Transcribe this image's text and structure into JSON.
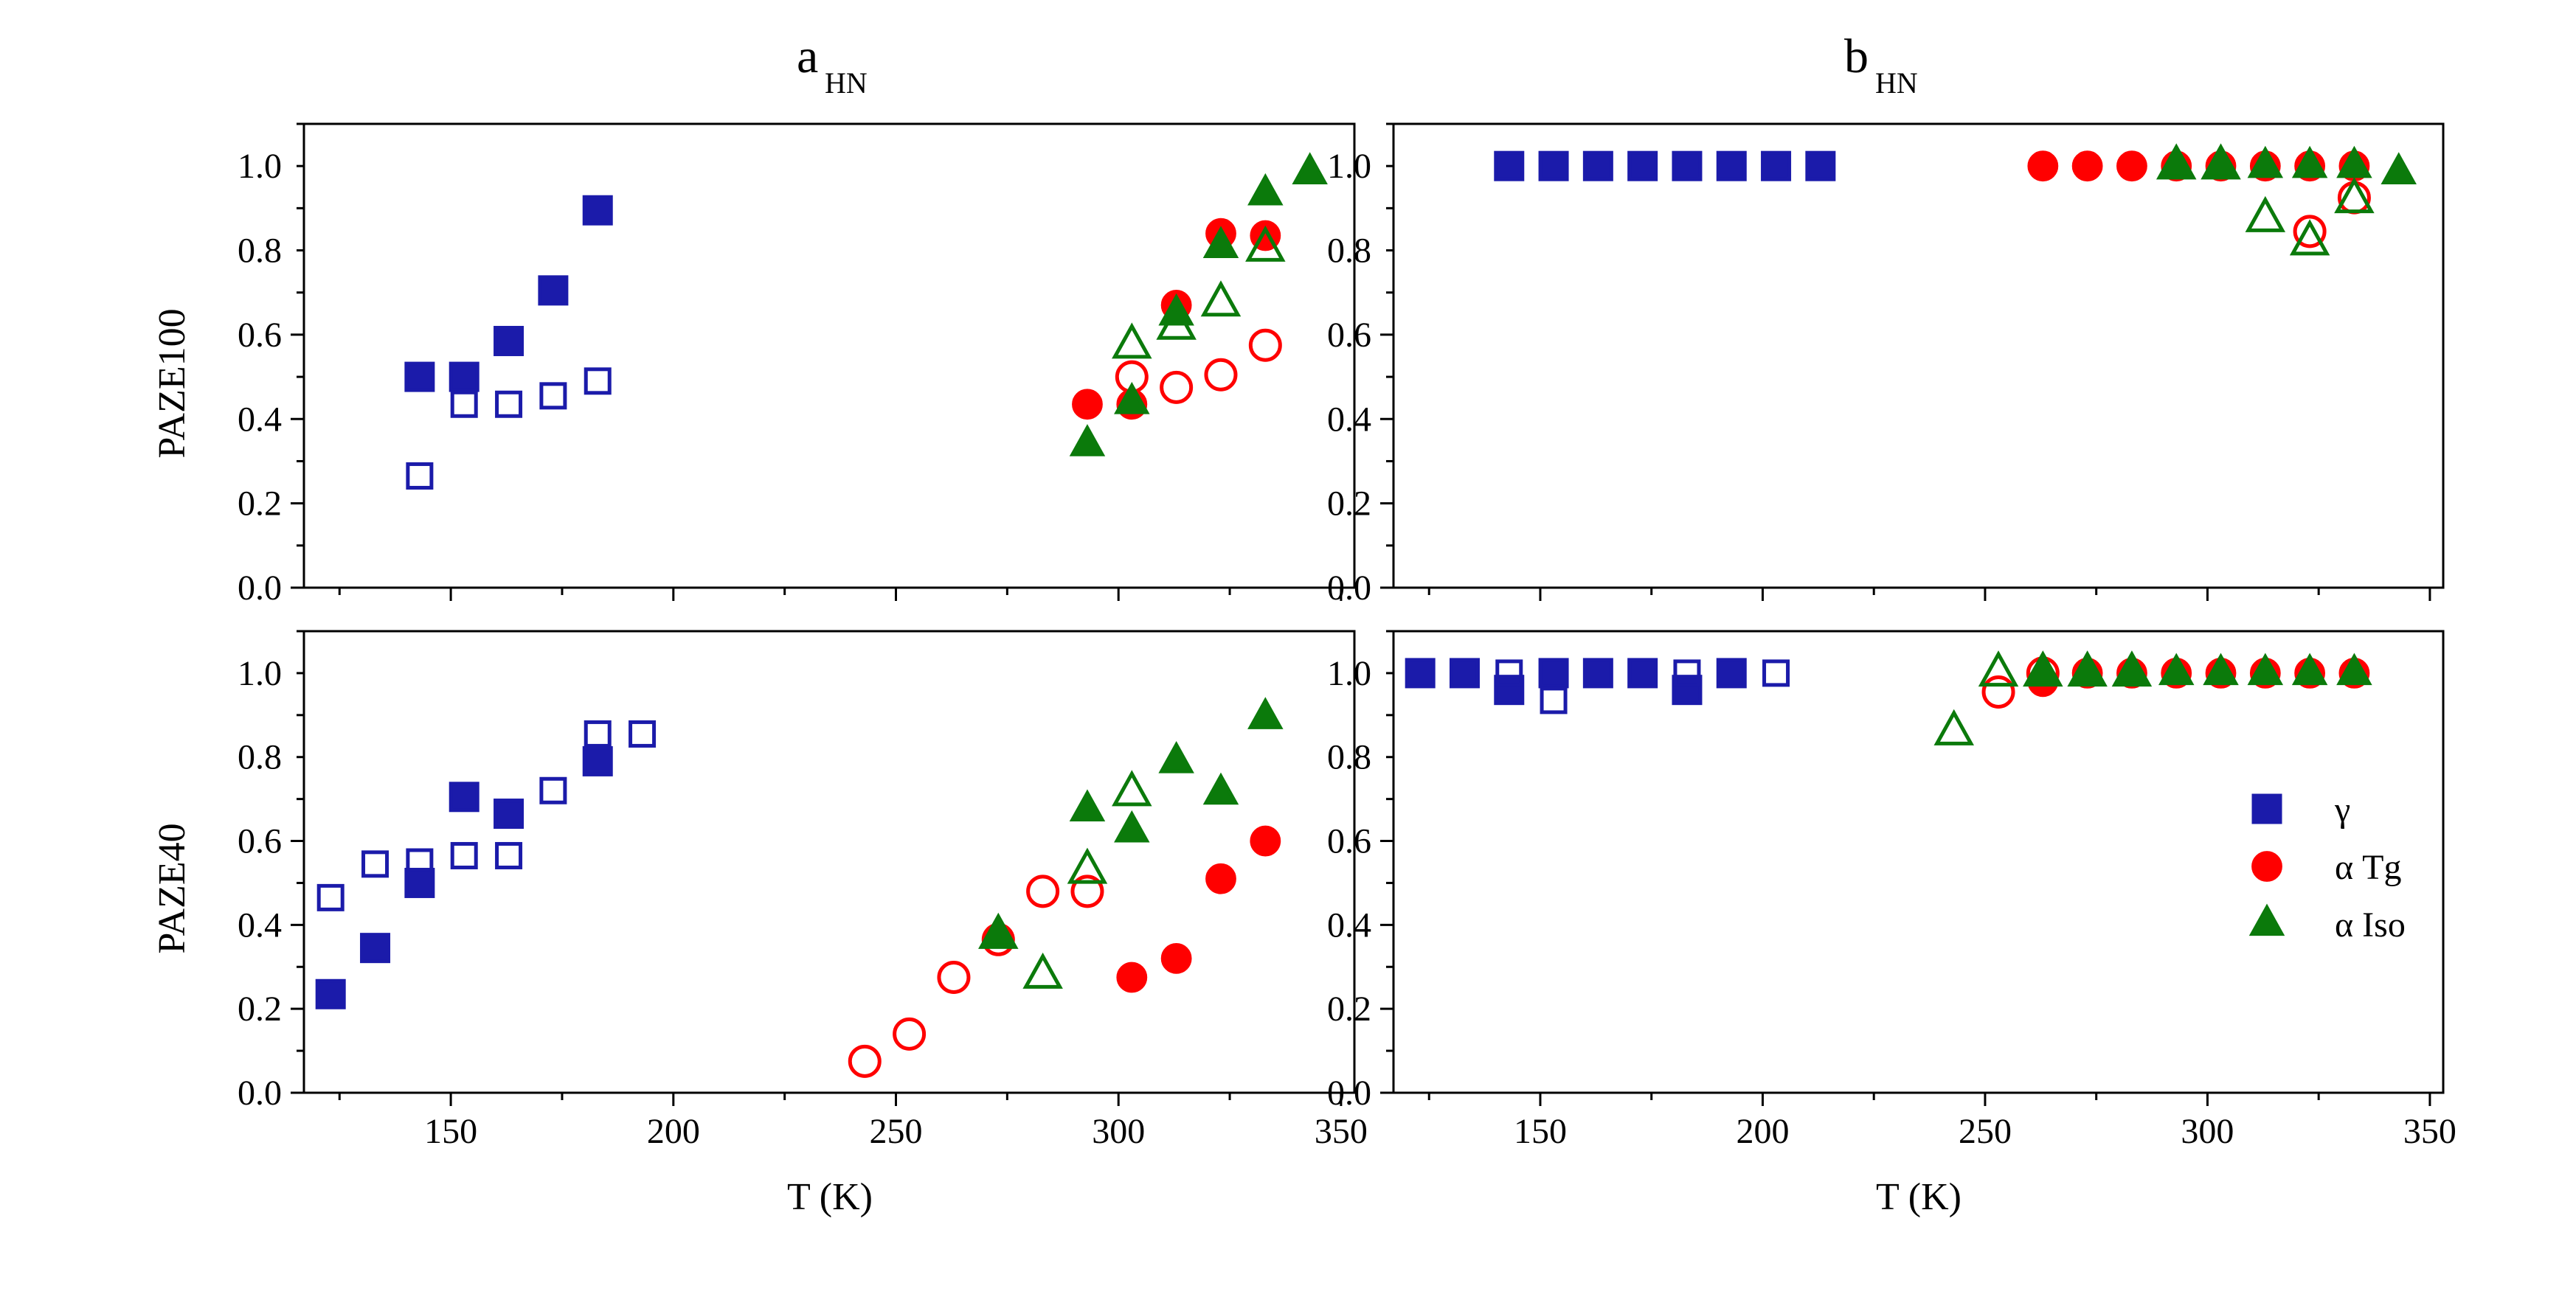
{
  "colors": {
    "gamma": "#1b1baa",
    "alpha_tg": "#ff0000",
    "alpha_iso": "#0b7a0b",
    "axis": "#000000"
  },
  "columns": [
    {
      "main": "a",
      "sub": "HN"
    },
    {
      "main": "b",
      "sub": "HN"
    }
  ],
  "rows": [
    "PAZE100",
    "PAZE40"
  ],
  "x_title": "T (K)",
  "legend": [
    "γ",
    "α Tg",
    "α Iso"
  ],
  "chart_data": [
    {
      "type": "scatter",
      "id": "a-paze100",
      "title": "aHN",
      "ylabel": "PAZE100",
      "xlabel": "",
      "xlim": [
        117,
        353
      ],
      "ylim": [
        0,
        1.1
      ],
      "xticks": [
        150,
        200,
        250,
        300,
        350
      ],
      "yticks": [
        "0.0",
        "0.2",
        "0.4",
        "0.6",
        "0.8",
        "1.0"
      ],
      "series": [
        {
          "name": "γ filled",
          "group": "gamma",
          "shape": "square",
          "filled": true,
          "points": [
            [
              143,
              0.5
            ],
            [
              153,
              0.5
            ],
            [
              163,
              0.585
            ],
            [
              173,
              0.705
            ],
            [
              183,
              0.895
            ]
          ]
        },
        {
          "name": "γ open",
          "group": "gamma",
          "shape": "square",
          "filled": false,
          "points": [
            [
              143,
              0.265
            ],
            [
              153,
              0.435
            ],
            [
              163,
              0.435
            ],
            [
              173,
              0.455
            ],
            [
              183,
              0.49
            ]
          ]
        },
        {
          "name": "α Tg filled",
          "group": "alpha_tg",
          "shape": "circle",
          "filled": true,
          "points": [
            [
              293,
              0.435
            ],
            [
              303,
              0.435
            ],
            [
              313,
              0.67
            ],
            [
              323,
              0.84
            ],
            [
              333,
              0.835
            ]
          ]
        },
        {
          "name": "α Tg open",
          "group": "alpha_tg",
          "shape": "circle",
          "filled": false,
          "points": [
            [
              303,
              0.5
            ],
            [
              313,
              0.475
            ],
            [
              323,
              0.505
            ],
            [
              333,
              0.575
            ]
          ]
        },
        {
          "name": "α Iso filled",
          "group": "alpha_iso",
          "shape": "triangle",
          "filled": true,
          "points": [
            [
              293,
              0.34
            ],
            [
              303,
              0.44
            ],
            [
              313,
              0.65
            ],
            [
              323,
              0.81
            ],
            [
              333,
              0.935
            ],
            [
              343,
              0.985
            ]
          ]
        },
        {
          "name": "α Iso open",
          "group": "alpha_iso",
          "shape": "triangle",
          "filled": false,
          "points": [
            [
              303,
              0.575
            ],
            [
              313,
              0.62
            ],
            [
              323,
              0.675
            ],
            [
              333,
              0.805
            ]
          ]
        }
      ]
    },
    {
      "type": "scatter",
      "id": "b-paze100",
      "title": "bHN",
      "ylabel": "",
      "xlabel": "",
      "xlim": [
        117,
        353
      ],
      "ylim": [
        0,
        1.1
      ],
      "xticks": [
        150,
        200,
        250,
        300,
        350
      ],
      "yticks": [
        "0.0",
        "0.2",
        "0.4",
        "0.6",
        "0.8",
        "1.0"
      ],
      "series": [
        {
          "name": "γ filled",
          "group": "gamma",
          "shape": "square",
          "filled": true,
          "points": [
            [
              143,
              1.0
            ],
            [
              153,
              1.0
            ],
            [
              163,
              1.0
            ],
            [
              173,
              1.0
            ],
            [
              183,
              1.0
            ],
            [
              193,
              1.0
            ],
            [
              203,
              1.0
            ],
            [
              213,
              1.0
            ]
          ]
        },
        {
          "name": "α Tg filled",
          "group": "alpha_tg",
          "shape": "circle",
          "filled": true,
          "points": [
            [
              263,
              1.0
            ],
            [
              273,
              1.0
            ],
            [
              283,
              1.0
            ],
            [
              293,
              1.0
            ],
            [
              303,
              1.0
            ],
            [
              313,
              1.0
            ],
            [
              323,
              1.0
            ],
            [
              333,
              1.0
            ]
          ]
        },
        {
          "name": "α Tg open",
          "group": "alpha_tg",
          "shape": "circle",
          "filled": false,
          "points": [
            [
              323,
              0.845
            ],
            [
              333,
              0.925
            ]
          ]
        },
        {
          "name": "α Iso filled",
          "group": "alpha_iso",
          "shape": "triangle",
          "filled": true,
          "points": [
            [
              293,
              1.0
            ],
            [
              303,
              1.0
            ],
            [
              313,
              1.0
            ],
            [
              323,
              1.0
            ],
            [
              333,
              1.0
            ],
            [
              343,
              0.985
            ]
          ]
        },
        {
          "name": "α Iso open",
          "group": "alpha_iso",
          "shape": "triangle",
          "filled": false,
          "points": [
            [
              293,
              1.0
            ],
            [
              303,
              1.0
            ],
            [
              313,
              0.875
            ],
            [
              323,
              0.82
            ],
            [
              333,
              0.92
            ]
          ]
        }
      ]
    },
    {
      "type": "scatter",
      "id": "a-paze40",
      "title": "",
      "ylabel": "PAZE40",
      "xlabel": "T (K)",
      "xlim": [
        117,
        353
      ],
      "ylim": [
        0,
        1.1
      ],
      "xticks": [
        150,
        200,
        250,
        300,
        350
      ],
      "yticks": [
        "0.0",
        "0.2",
        "0.4",
        "0.6",
        "0.8",
        "1.0"
      ],
      "series": [
        {
          "name": "γ filled",
          "group": "gamma",
          "shape": "square",
          "filled": true,
          "points": [
            [
              123,
              0.235
            ],
            [
              133,
              0.345
            ],
            [
              143,
              0.5
            ],
            [
              153,
              0.705
            ],
            [
              163,
              0.665
            ],
            [
              183,
              0.79
            ]
          ]
        },
        {
          "name": "γ open",
          "group": "gamma",
          "shape": "square",
          "filled": false,
          "points": [
            [
              123,
              0.465
            ],
            [
              133,
              0.545
            ],
            [
              143,
              0.55
            ],
            [
              153,
              0.565
            ],
            [
              163,
              0.565
            ],
            [
              173,
              0.72
            ],
            [
              183,
              0.855
            ],
            [
              193,
              0.855
            ]
          ]
        },
        {
          "name": "α Tg filled",
          "group": "alpha_tg",
          "shape": "circle",
          "filled": true,
          "points": [
            [
              303,
              0.275
            ],
            [
              313,
              0.32
            ],
            [
              323,
              0.51
            ],
            [
              333,
              0.6
            ]
          ]
        },
        {
          "name": "α Tg open",
          "group": "alpha_tg",
          "shape": "circle",
          "filled": false,
          "points": [
            [
              243,
              0.075
            ],
            [
              253,
              0.14
            ],
            [
              263,
              0.275
            ],
            [
              273,
              0.365
            ],
            [
              283,
              0.48
            ],
            [
              293,
              0.48
            ]
          ]
        },
        {
          "name": "α Iso filled",
          "group": "alpha_iso",
          "shape": "triangle",
          "filled": true,
          "points": [
            [
              273,
              0.375
            ],
            [
              293,
              0.675
            ],
            [
              303,
              0.625
            ],
            [
              313,
              0.79
            ],
            [
              323,
              0.715
            ],
            [
              333,
              0.895
            ]
          ]
        },
        {
          "name": "α Iso open",
          "group": "alpha_iso",
          "shape": "triangle",
          "filled": false,
          "points": [
            [
              273,
              0.375
            ],
            [
              283,
              0.28
            ],
            [
              293,
              0.53
            ],
            [
              303,
              0.715
            ]
          ]
        }
      ]
    },
    {
      "type": "scatter",
      "id": "b-paze40",
      "title": "",
      "ylabel": "",
      "xlabel": "T (K)",
      "xlim": [
        117,
        353
      ],
      "ylim": [
        0,
        1.1
      ],
      "xticks": [
        150,
        200,
        250,
        300,
        350
      ],
      "yticks": [
        "0.0",
        "0.2",
        "0.4",
        "0.6",
        "0.8",
        "1.0"
      ],
      "series": [
        {
          "name": "γ filled",
          "group": "gamma",
          "shape": "square",
          "filled": true,
          "points": [
            [
              123,
              1.0
            ],
            [
              133,
              1.0
            ],
            [
              143,
              0.96
            ],
            [
              153,
              1.0
            ],
            [
              163,
              1.0
            ],
            [
              173,
              1.0
            ],
            [
              183,
              0.96
            ],
            [
              193,
              1.0
            ]
          ]
        },
        {
          "name": "γ open",
          "group": "gamma",
          "shape": "square",
          "filled": false,
          "points": [
            [
              143,
              1.0
            ],
            [
              153,
              0.935
            ],
            [
              183,
              1.0
            ],
            [
              203,
              1.0
            ]
          ]
        },
        {
          "name": "α Tg filled",
          "group": "alpha_tg",
          "shape": "circle",
          "filled": true,
          "points": [
            [
              263,
              0.98
            ],
            [
              273,
              1.0
            ],
            [
              283,
              1.0
            ],
            [
              293,
              1.0
            ],
            [
              303,
              1.0
            ],
            [
              313,
              1.0
            ],
            [
              323,
              1.0
            ],
            [
              333,
              1.0
            ]
          ]
        },
        {
          "name": "α Tg open",
          "group": "alpha_tg",
          "shape": "circle",
          "filled": false,
          "points": [
            [
              253,
              0.955
            ],
            [
              263,
              1.0
            ]
          ]
        },
        {
          "name": "α Iso filled",
          "group": "alpha_iso",
          "shape": "triangle",
          "filled": true,
          "points": [
            [
              263,
              1.0
            ],
            [
              273,
              1.0
            ],
            [
              283,
              1.0
            ],
            [
              293,
              1.0
            ],
            [
              303,
              1.0
            ],
            [
              313,
              1.0
            ],
            [
              323,
              1.0
            ],
            [
              333,
              1.0
            ]
          ]
        },
        {
          "name": "α Iso open",
          "group": "alpha_iso",
          "shape": "triangle",
          "filled": false,
          "points": [
            [
              243,
              0.86
            ],
            [
              253,
              1.0
            ],
            [
              263,
              1.0
            ],
            [
              273,
              1.0
            ],
            [
              283,
              1.0
            ]
          ]
        }
      ]
    }
  ]
}
